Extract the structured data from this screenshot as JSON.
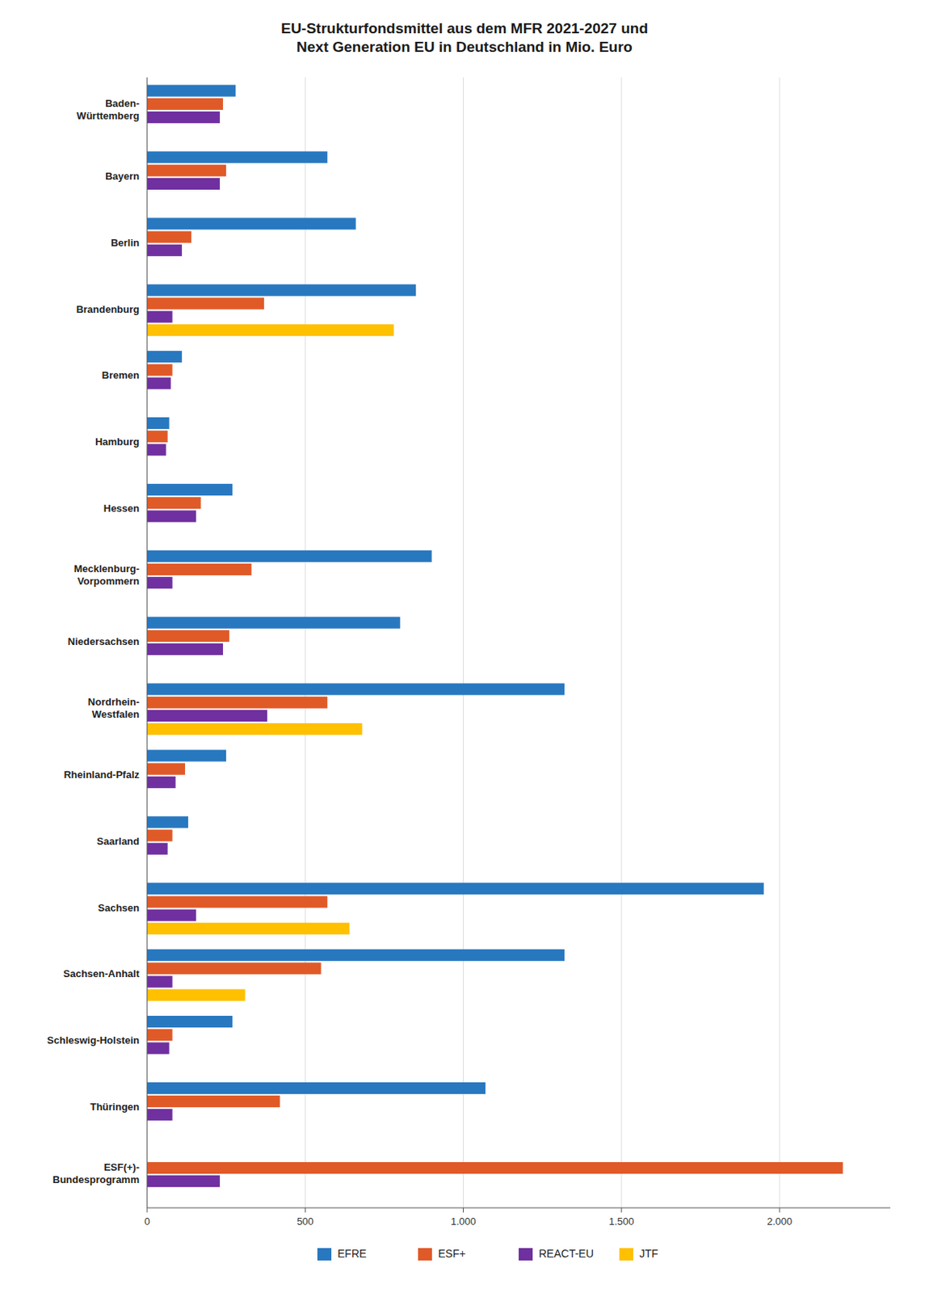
{
  "chart_data": {
    "type": "bar",
    "orientation": "horizontal",
    "title": "EU-Strukturfondsmittel aus dem MFR 2021-2027 und\nNext Generation EU in Deutschland in Mio. Euro",
    "categories": [
      "Baden-\nWürttemberg",
      "Bayern",
      "Berlin",
      "Brandenburg",
      "Bremen",
      "Hamburg",
      "Hessen",
      "Mecklenburg-\nVorpommern",
      "Niedersachsen",
      "Nordrhein-\nWestfalen",
      "Rheinland-Pfalz",
      "Saarland",
      "Sachsen",
      "Sachsen-Anhalt",
      "Schleswig-Holstein",
      "Thüringen",
      "ESF(+)-\nBundesprogramm"
    ],
    "series": [
      {
        "name": "EFRE",
        "color": "#2878C0",
        "values": [
          280,
          570,
          660,
          850,
          110,
          70,
          270,
          900,
          800,
          1320,
          250,
          130,
          1950,
          1320,
          270,
          1070,
          0
        ]
      },
      {
        "name": "ESF+",
        "color": "#E05A28",
        "values": [
          240,
          250,
          140,
          370,
          80,
          65,
          170,
          330,
          260,
          570,
          120,
          80,
          570,
          550,
          80,
          420,
          2200
        ]
      },
      {
        "name": "REACT-EU",
        "color": "#7030A0",
        "values": [
          230,
          230,
          110,
          80,
          75,
          60,
          155,
          80,
          240,
          380,
          90,
          65,
          155,
          80,
          70,
          80,
          230
        ]
      },
      {
        "name": "JTF",
        "color": "#FFC000",
        "values": [
          0,
          0,
          0,
          780,
          0,
          0,
          0,
          0,
          0,
          680,
          0,
          0,
          640,
          310,
          0,
          0,
          0
        ]
      }
    ],
    "xlim": [
      0,
      2350
    ],
    "xticks": [
      0,
      500,
      {
        "value": 1000,
        "label": "1.000"
      },
      {
        "value": 1500,
        "label": "1.500"
      },
      {
        "value": 2000,
        "label": "2.000"
      }
    ],
    "grid": true,
    "legend": "bottom"
  }
}
